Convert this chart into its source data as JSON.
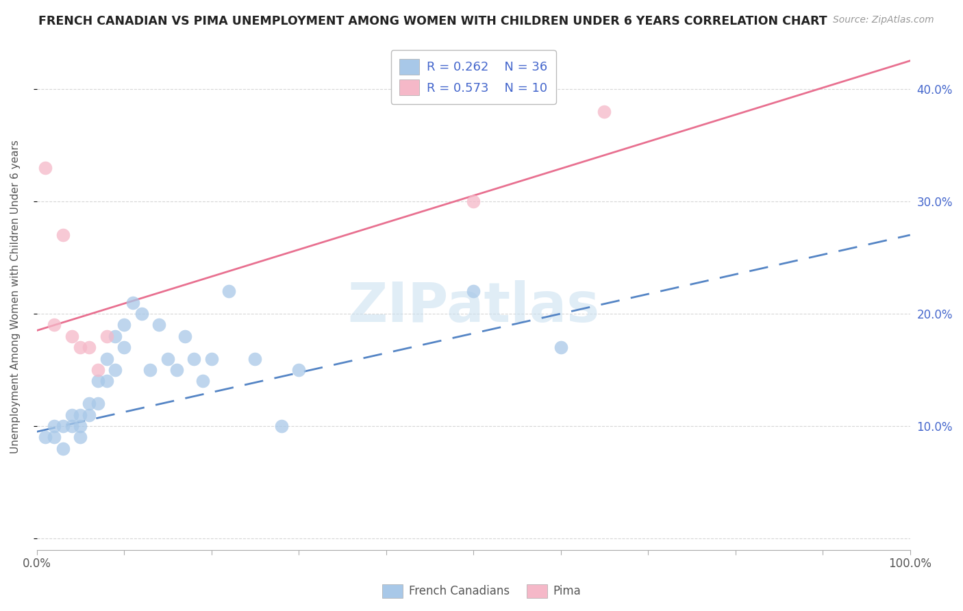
{
  "title": "FRENCH CANADIAN VS PIMA UNEMPLOYMENT AMONG WOMEN WITH CHILDREN UNDER 6 YEARS CORRELATION CHART",
  "source": "Source: ZipAtlas.com",
  "ylabel": "Unemployment Among Women with Children Under 6 years",
  "xlim": [
    0,
    100
  ],
  "ylim": [
    -1,
    44
  ],
  "yticks": [
    0,
    10,
    20,
    30,
    40
  ],
  "right_ytick_labels": [
    "",
    "10.0%",
    "20.0%",
    "30.0%",
    "40.0%"
  ],
  "watermark_text": "ZIPatlas",
  "legend_label1": "French Canadians",
  "legend_label2": "Pima",
  "blue_scatter_color": "#a8c8e8",
  "pink_scatter_color": "#f5b8c8",
  "line_blue_color": "#5585c5",
  "line_pink_color": "#e87090",
  "right_axis_color": "#4466cc",
  "title_color": "#222222",
  "legend_text_color": "#4466cc",
  "legend_n_color": "#cc3333",
  "grid_color": "#cccccc",
  "background_color": "#ffffff",
  "french_x": [
    1,
    2,
    2,
    3,
    3,
    4,
    4,
    5,
    5,
    5,
    6,
    6,
    7,
    7,
    8,
    8,
    9,
    9,
    10,
    10,
    11,
    12,
    13,
    14,
    15,
    16,
    17,
    18,
    19,
    20,
    22,
    25,
    28,
    30,
    50,
    60
  ],
  "french_y": [
    9,
    9,
    10,
    10,
    8,
    10,
    11,
    9,
    10,
    11,
    11,
    12,
    12,
    14,
    14,
    16,
    15,
    18,
    17,
    19,
    21,
    20,
    15,
    19,
    16,
    15,
    18,
    16,
    14,
    16,
    22,
    16,
    10,
    15,
    22,
    17
  ],
  "pima_x": [
    1,
    2,
    3,
    4,
    5,
    6,
    7,
    8,
    50,
    65
  ],
  "pima_y": [
    33,
    19,
    27,
    18,
    17,
    17,
    15,
    18,
    30,
    38
  ],
  "pink_line_x0": 0,
  "pink_line_y0": 18.5,
  "pink_line_x1": 100,
  "pink_line_y1": 42.5,
  "blue_line_x0": 0,
  "blue_line_y0": 9.5,
  "blue_line_x1": 100,
  "blue_line_y1": 27.0,
  "xtick_positions": [
    0,
    10,
    20,
    30,
    40,
    50,
    60,
    70,
    80,
    90,
    100
  ]
}
